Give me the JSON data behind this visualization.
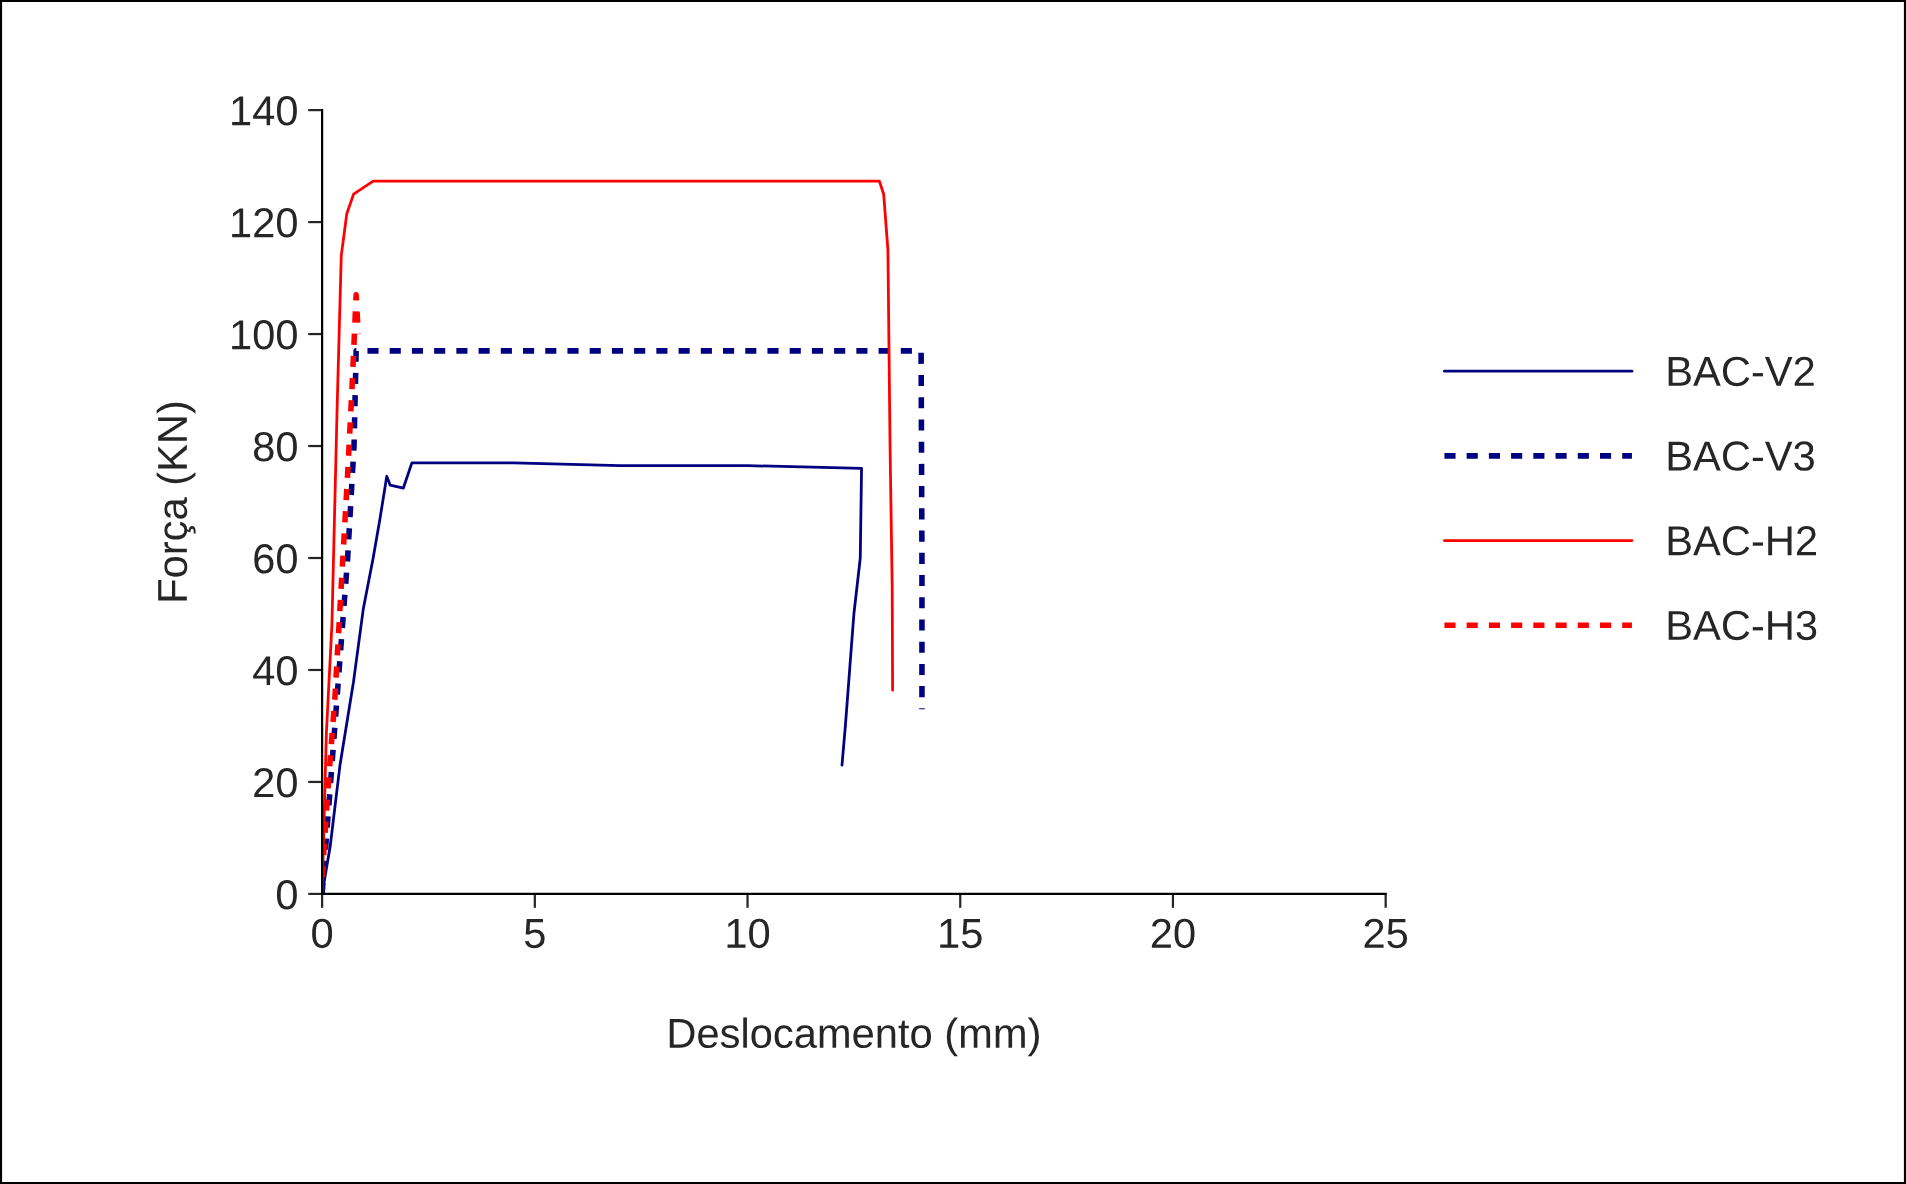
{
  "chart_data": {
    "type": "line",
    "xlabel": "Deslocamento (mm)",
    "ylabel": "Força (KN)",
    "xlim": [
      0,
      25
    ],
    "xticks": [
      0,
      5,
      10,
      15,
      20,
      25
    ],
    "ylim": [
      0,
      140
    ],
    "yticks": [
      0,
      20,
      40,
      60,
      80,
      100,
      120,
      140
    ],
    "grid": false,
    "legend": "right",
    "marker": "none",
    "series": [
      {
        "name": "BAC-V2",
        "color": "#000080",
        "line_style": "solid",
        "x": [
          0,
          0.19,
          0.42,
          0.74,
          0.97,
          1.2,
          1.36,
          1.52,
          1.6,
          1.91,
          2.11,
          4.5,
          7,
          10,
          12.68,
          12.65,
          12.5,
          12.4,
          12.3,
          12.22
        ],
        "values": [
          0,
          8.5,
          23,
          38,
          51,
          60,
          67,
          74.6,
          73,
          72.5,
          77,
          77,
          76.5,
          76.5,
          76,
          60,
          50,
          40,
          30,
          23
        ]
      },
      {
        "name": "BAC-V3",
        "color": "#000080",
        "line_style": "dotted",
        "x": [
          0,
          0.2,
          0.4,
          0.6,
          0.75,
          0.8,
          5,
          10,
          14.08,
          14.1,
          14.1
        ],
        "values": [
          0,
          20,
          40,
          60,
          80,
          97,
          97,
          97,
          97,
          60,
          33
        ]
      },
      {
        "name": "BAC-H2",
        "color": "#ff0000",
        "line_style": "solid",
        "x": [
          0,
          0.1,
          0.23,
          0.35,
          0.45,
          0.58,
          0.74,
          1.2,
          5,
          10,
          13.1,
          13.2,
          13.3,
          13.35,
          13.4,
          13.41
        ],
        "values": [
          0,
          28.7,
          48,
          86,
          114,
          121.5,
          125,
          127.3,
          127.3,
          127.3,
          127.3,
          125,
          115,
          80,
          55,
          36.4
        ]
      },
      {
        "name": "BAC-H3",
        "color": "#ff0000",
        "line_style": "dotted",
        "x": [
          0,
          0.15,
          0.3,
          0.45,
          0.6,
          0.7,
          0.8,
          0.85
        ],
        "values": [
          3,
          20,
          35,
          55,
          75,
          90,
          107,
          100
        ]
      }
    ]
  }
}
